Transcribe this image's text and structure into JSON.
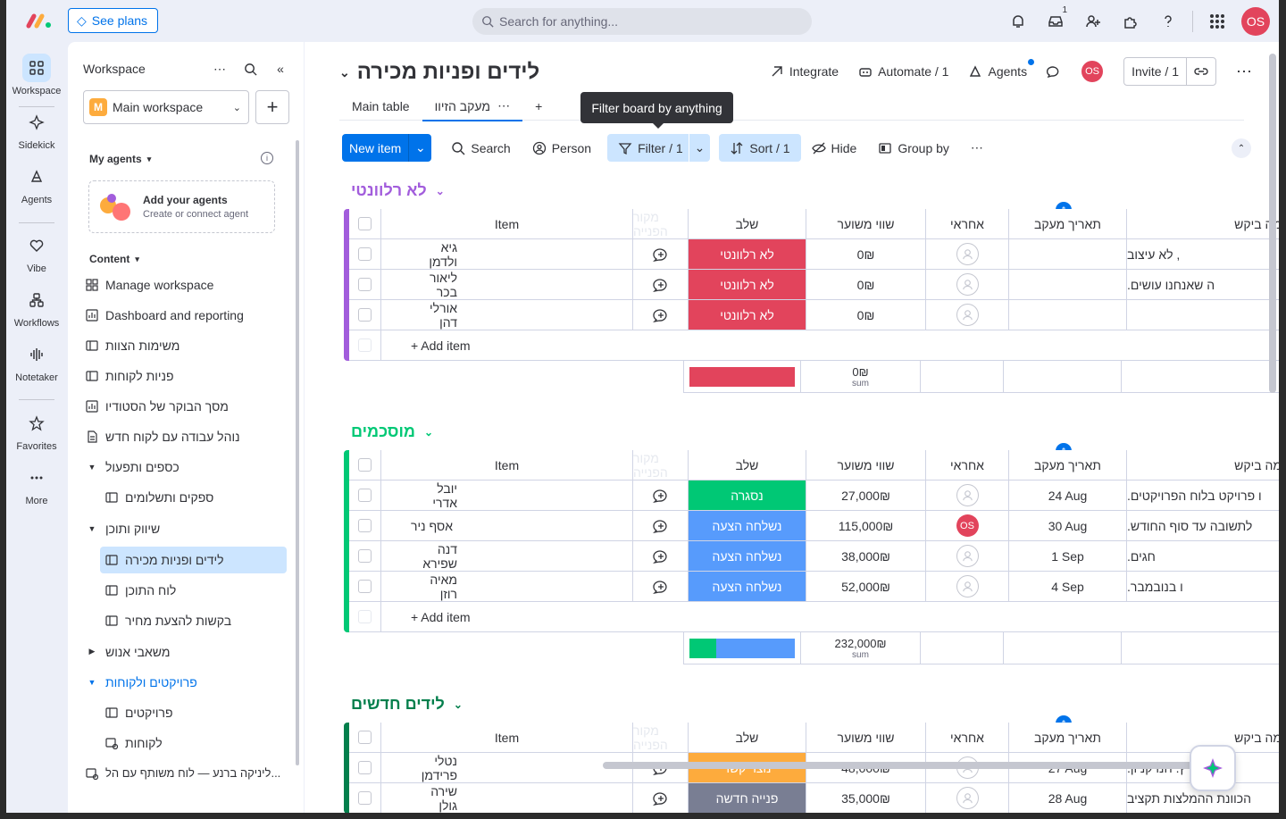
{
  "topbar": {
    "see_plans": "See plans",
    "search_placeholder": "Search for anything...",
    "inbox_count": "1",
    "user_initials": "OS"
  },
  "rail": [
    {
      "label": "Workspace",
      "icon": "grid-icon"
    },
    {
      "label": "Sidekick",
      "icon": "sparkle-icon"
    },
    {
      "label": "Agents",
      "icon": "agents-icon"
    },
    {
      "label": "Vibe",
      "icon": "vibe-icon"
    },
    {
      "label": "Workflows",
      "icon": "workflows-icon"
    },
    {
      "label": "Notetaker",
      "icon": "notetaker-icon"
    },
    {
      "label": "Favorites",
      "icon": "star-icon"
    },
    {
      "label": "More",
      "icon": "more-icon"
    }
  ],
  "sidebar": {
    "title": "Workspace",
    "workspace_name": "Main workspace",
    "workspace_badge": "M",
    "my_agents": "My agents",
    "agent_card_title": "Add your agents",
    "agent_card_sub": "Create or connect agent",
    "content": "Content",
    "items": [
      {
        "label": "Manage workspace"
      },
      {
        "label": "Dashboard and reporting"
      },
      {
        "label": "משימות הצוות"
      },
      {
        "label": "פניות לקוחות"
      },
      {
        "label": "מסך הבוקר של הסטודיו"
      },
      {
        "label": "נוהל עבודה עם לקוח חדש"
      },
      {
        "label": "כספים ותפעול"
      },
      {
        "label": "ספקים ותשלומים"
      },
      {
        "label": "שיווק ותוכן"
      },
      {
        "label": "לידים ופניות מכירה"
      },
      {
        "label": "לוח התוכן"
      },
      {
        "label": "בקשות להצעת מחיר"
      },
      {
        "label": "משאבי אנוש"
      },
      {
        "label": "פרויקטים ולקוחות"
      },
      {
        "label": "פרויקטים"
      },
      {
        "label": "לקוחות"
      },
      {
        "label": "ליניקה ברנע — לוח משותף עם הל..."
      }
    ]
  },
  "board": {
    "title": "לידים ופניות מכירה",
    "integrate": "Integrate",
    "automate": "Automate / 1",
    "agents": "Agents",
    "avatar": "OS",
    "invite": "Invite / 1",
    "tabs": [
      "Main table",
      "מעקב הזיוו"
    ],
    "tooltip": "Filter board by anything",
    "toolbar": {
      "new_item": "New item",
      "search": "Search",
      "person": "Person",
      "filter": "Filter / 1",
      "sort": "Sort / 1",
      "hide": "Hide",
      "group_by": "Group by"
    },
    "columns": {
      "item": "Item",
      "ghost": "מקור הפנייה",
      "stage": "שלב",
      "value": "שווי משוער",
      "owner": "אחראי",
      "date": "תאריך מעקב",
      "request": "מה ביקש"
    },
    "add_item": "+ Add item",
    "sum_label": "sum"
  },
  "groups": [
    {
      "title": "לא רלוונטי",
      "color": "#a25ddc",
      "rows": [
        {
          "item": "גיא ולדמן",
          "stage": "לא רלוונטי",
          "stage_color": "#e2445c",
          "value": "0₪",
          "owner": "",
          "date": "",
          "request": ", לא עיצוב"
        },
        {
          "item": "ליאור בכר",
          "stage": "לא רלוונטי",
          "stage_color": "#e2445c",
          "value": "0₪",
          "owner": "",
          "date": "",
          "request": "ה שאנחנו עושים."
        },
        {
          "item": "אורלי דהן",
          "stage": "לא רלוונטי",
          "stage_color": "#e2445c",
          "value": "0₪",
          "owner": "",
          "date": "",
          "request": ""
        }
      ],
      "sum": "0₪"
    },
    {
      "title": "מוסכמים",
      "color": "#00c875",
      "rows": [
        {
          "item": "יובל אדרי",
          "stage": "נסגרה",
          "stage_color": "#00c875",
          "value": "27,000₪",
          "owner": "",
          "date": "24 Aug",
          "request": "ו פרויקט בלוח הפרויקטים."
        },
        {
          "item": "אסף ניר",
          "stage": "נשלחה הצעה",
          "stage_color": "#579bfc",
          "value": "115,000₪",
          "owner": "OS",
          "date": "30 Aug",
          "request": "לתשובה עד סוף החודש."
        },
        {
          "item": "דנה שפירא",
          "stage": "נשלחה הצעה",
          "stage_color": "#579bfc",
          "value": "38,000₪",
          "owner": "",
          "date": "1 Sep",
          "request": "חגים."
        },
        {
          "item": "מאיה רוזן",
          "stage": "נשלחה הצעה",
          "stage_color": "#579bfc",
          "value": "52,000₪",
          "owner": "",
          "date": "4 Sep",
          "request": "ו בנובמבר."
        }
      ],
      "sum": "232,000₪"
    },
    {
      "title": "לידים חדשים",
      "color": "#037f4c",
      "rows": [
        {
          "item": "נטלי פרידמן",
          "stage": "נוצר קשר",
          "stage_color": "#fdab3d",
          "value": "48,000₪",
          "owner": "",
          "date": "27 Aug",
          "request": "ץ. חנו קניון."
        },
        {
          "item": "שירה גולן",
          "stage": "פנייה חדשה",
          "stage_color": "#797e93",
          "value": "35,000₪",
          "owner": "",
          "date": "28 Aug",
          "request": "הכוונת ההמלצות תקציב"
        }
      ]
    }
  ]
}
